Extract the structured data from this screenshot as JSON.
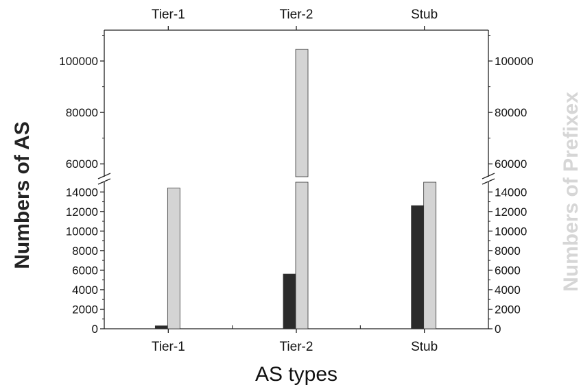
{
  "chart_data": {
    "type": "bar",
    "categories": [
      "Tier-1",
      "Tier-2",
      "Stub"
    ],
    "xlabel": "AS types",
    "ylabel_left": "Numbers of AS",
    "ylabel_right": "Numbers of Prefixex",
    "series": [
      {
        "name": "",
        "axis": "left",
        "color": "#2b2b2b",
        "values": [
          300,
          5600,
          12600
        ]
      },
      {
        "name": "",
        "axis": "right",
        "color": "#d4d4d4",
        "values": [
          14400,
          104500,
          15200
        ]
      }
    ],
    "axis_break": {
      "lower_range": [
        0,
        15000
      ],
      "upper_range": [
        55000,
        112000
      ]
    },
    "lower_ticks": [
      "0",
      "2000",
      "4000",
      "6000",
      "8000",
      "10000",
      "12000",
      "14000"
    ],
    "upper_ticks": [
      "60000",
      "80000",
      "100000"
    ],
    "lower_tick_values": [
      0,
      2000,
      4000,
      6000,
      8000,
      10000,
      12000,
      14000
    ],
    "upper_tick_values": [
      60000,
      80000,
      100000
    ],
    "grid": false,
    "legend": "none"
  }
}
